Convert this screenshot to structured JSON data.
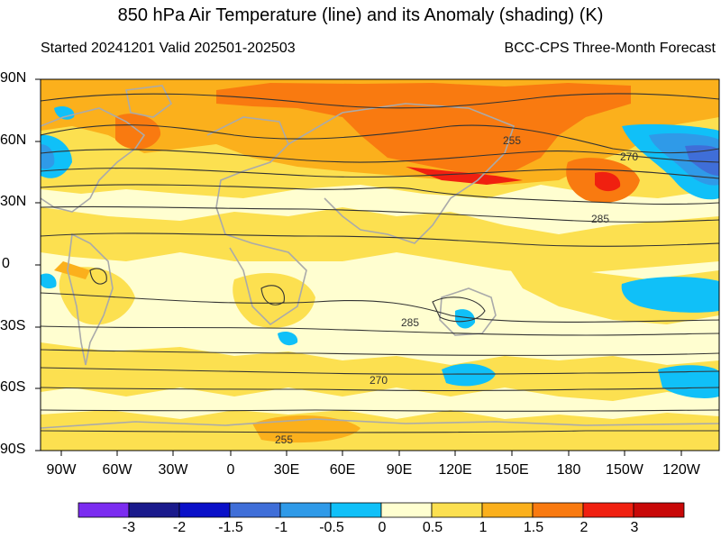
{
  "header": {
    "title": "850 hPa Air Temperature (line) and its Anomaly (shading) (K)",
    "started": "Started 20241201  Valid 202501-202503",
    "product": "BCC-CPS Three-Month Forecast"
  },
  "lat_ticks": [
    "90N",
    "60N",
    "30N",
    "0",
    "30S",
    "60S",
    "90S"
  ],
  "lon_ticks": [
    "90W",
    "60W",
    "30W",
    "0",
    "30E",
    "60E",
    "90E",
    "120E",
    "150E",
    "180",
    "150W",
    "120W"
  ],
  "contour_labels": [
    "255",
    "270",
    "285",
    "285",
    "270",
    "255"
  ],
  "colorbar": {
    "labels": [
      "-3",
      "-2",
      "-1.5",
      "-1",
      "-0.5",
      "0",
      "0.5",
      "1",
      "1.5",
      "2",
      "3"
    ],
    "colors": [
      "#7b2cf0",
      "#1a1a8c",
      "#0a10c8",
      "#3f6ed8",
      "#2f9ae8",
      "#10c0f8",
      "#ffffd0",
      "#fce050",
      "#fbb01c",
      "#f97a10",
      "#f02010",
      "#c80808"
    ]
  },
  "palette": {
    "ocean_base": "#fffed0",
    "land_outline": "#aaaaaa",
    "contour": "#333333"
  }
}
